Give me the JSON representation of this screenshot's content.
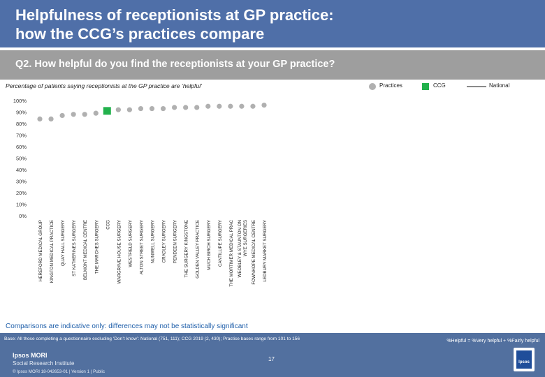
{
  "header": {
    "title_line1": "Helpfulness of receptionists at GP practice:",
    "title_line2": "how the CCG’s practices compare"
  },
  "question": "Q2. How helpful do you find the receptionists at your GP practice?",
  "subtitle": "Percentage of patients saying receptionists at the GP practice are ‘helpful’",
  "legend": {
    "practices_label": "Practices",
    "ccg_label": "CCG",
    "national_label": "National",
    "practices_color": "#b0b0b0",
    "ccg_color": "#22b14c",
    "national_color": "#8a8a8a"
  },
  "chart_data": {
    "type": "scatter",
    "categories": [
      "HEREFORD MEDICAL GROUP",
      "KINGTON MEDICAL PRACTICE",
      "QUAY HALL SURGERY",
      "ST KATHERINES SURGERY",
      "BELMONT MEDICAL CENTRE",
      "THE MARCHES SURGERY",
      "CCG",
      "WARGRAVE HOUSE SURGERY",
      "WESTFIELD SURGERY",
      "ALTON STREET SURGERY",
      "NUNWELL SURGERY",
      "CRADLEY SURGERY",
      "PENDEEN SURGERY",
      "THE SURGERY KINGSTONE",
      "GOLDEN VALLEY PRACTICE",
      "MUCH BIRCH SURGERY",
      "CANTILUPE SURGERY",
      "THE MORTIMER MEDICAL PRAC",
      "WEOBLEY & STAUNTON ON WYE SURGERIES",
      "FOWNHOPE MEDICAL CENTRE",
      "LEDBURY MARKET SURGERY"
    ],
    "series": [
      {
        "name": "Practices",
        "values": [
          84,
          84,
          87,
          88,
          88,
          89,
          null,
          92,
          92,
          93,
          93,
          93,
          94,
          94,
          94,
          95,
          95,
          95,
          95,
          95,
          96
        ]
      },
      {
        "name": "CCG",
        "values": [
          null,
          null,
          null,
          null,
          null,
          null,
          91,
          null,
          null,
          null,
          null,
          null,
          null,
          null,
          null,
          null,
          null,
          null,
          null,
          null,
          null
        ]
      }
    ],
    "y_ticks": [
      "0%",
      "10%",
      "20%",
      "30%",
      "40%",
      "50%",
      "60%",
      "70%",
      "80%",
      "90%",
      "100%"
    ],
    "ylim": [
      0,
      100
    ],
    "grid": false,
    "legend_position": "top-right"
  },
  "caveat": "Comparisons are indicative only: differences may not be statistically significant",
  "footer": {
    "base": "Base: All those completing a questionnaire excluding ‘Don’t know’: National (751, 111); CCG 2019 (2, 430); Practice bases range from 101 to 156",
    "formula": "%Helpful = %Very helpful + %Fairly helpful",
    "brand_line1": "Ipsos MORI",
    "brand_line2": "Social Research Institute",
    "page_number": "17",
    "legal": "© Ipsos MORI    18-042653-01 | Version 1 | Public",
    "logo_text": "Ipsos"
  }
}
